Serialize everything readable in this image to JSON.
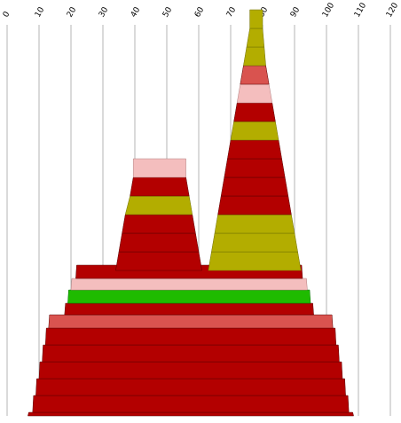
{
  "chart_data": {
    "type": "area",
    "x_axis": {
      "position": "top",
      "range": [
        0,
        120
      ],
      "ticks": [
        0,
        10,
        20,
        30,
        40,
        50,
        60,
        70,
        80,
        90,
        100,
        110,
        120
      ],
      "tick_labels": [
        "0",
        "10",
        "20",
        "30",
        "40",
        "50",
        "60",
        "70",
        "80",
        "90",
        "100",
        "110",
        "120"
      ]
    },
    "grid": "vertical",
    "legend": "none",
    "colors": {
      "red": "#b30000",
      "salmon": "#d9534f",
      "pink": "#f4bebe",
      "olive": "#b3ad00",
      "green": "#1fbb00"
    },
    "stacks": [
      {
        "name": "",
        "bands": [
          {
            "color": "red",
            "range": [
              6.5,
              108.5
            ]
          },
          {
            "color": "red",
            "range": [
              8,
              107
            ]
          },
          {
            "color": "red",
            "range": [
              9,
              106
            ]
          },
          {
            "color": "red",
            "range": [
              10,
              105
            ]
          },
          {
            "color": "red",
            "range": [
              11,
              104
            ]
          },
          {
            "color": "red",
            "range": [
              12,
              103
            ]
          },
          {
            "color": "salmon",
            "range": [
              13,
              102
            ]
          },
          {
            "color": "red",
            "range": [
              18,
              96
            ]
          },
          {
            "color": "green",
            "range": [
              19,
              95
            ]
          },
          {
            "color": "pink",
            "range": [
              20,
              94
            ]
          },
          {
            "color": "red",
            "range": [
              21.5,
              92.5
            ]
          }
        ]
      },
      {
        "name": "",
        "bands": [
          {
            "color": "red",
            "range": [
              34,
              61
            ]
          },
          {
            "color": "red",
            "range": [
              35,
              60
            ]
          },
          {
            "color": "red",
            "range": [
              36,
              59
            ]
          },
          {
            "color": "olive",
            "range": [
              37,
              58
            ]
          },
          {
            "color": "red",
            "range": [
              38.5,
              57
            ]
          },
          {
            "color": "pink",
            "range": [
              39.5,
              56
            ]
          }
        ]
      },
      {
        "name": "",
        "bands": [
          {
            "color": "olive",
            "range": [
              63,
              92
            ]
          },
          {
            "color": "olive",
            "range": [
              64,
              91
            ]
          },
          {
            "color": "olive",
            "range": [
              65,
              90
            ]
          },
          {
            "color": "red",
            "range": [
              66,
              89
            ]
          },
          {
            "color": "red",
            "range": [
              67,
              88
            ]
          },
          {
            "color": "red",
            "range": [
              68,
              87
            ]
          },
          {
            "color": "red",
            "range": [
              69,
              86
            ]
          },
          {
            "color": "olive",
            "range": [
              70,
              85
            ]
          },
          {
            "color": "red",
            "range": [
              71,
              84
            ]
          },
          {
            "color": "pink",
            "range": [
              72,
              83
            ]
          },
          {
            "color": "salmon",
            "range": [
              73,
              82
            ]
          },
          {
            "color": "olive",
            "range": [
              74,
              81
            ]
          },
          {
            "color": "olive",
            "range": [
              75,
              80.5
            ]
          },
          {
            "color": "olive",
            "range": [
              76,
              80
            ]
          }
        ]
      }
    ]
  }
}
